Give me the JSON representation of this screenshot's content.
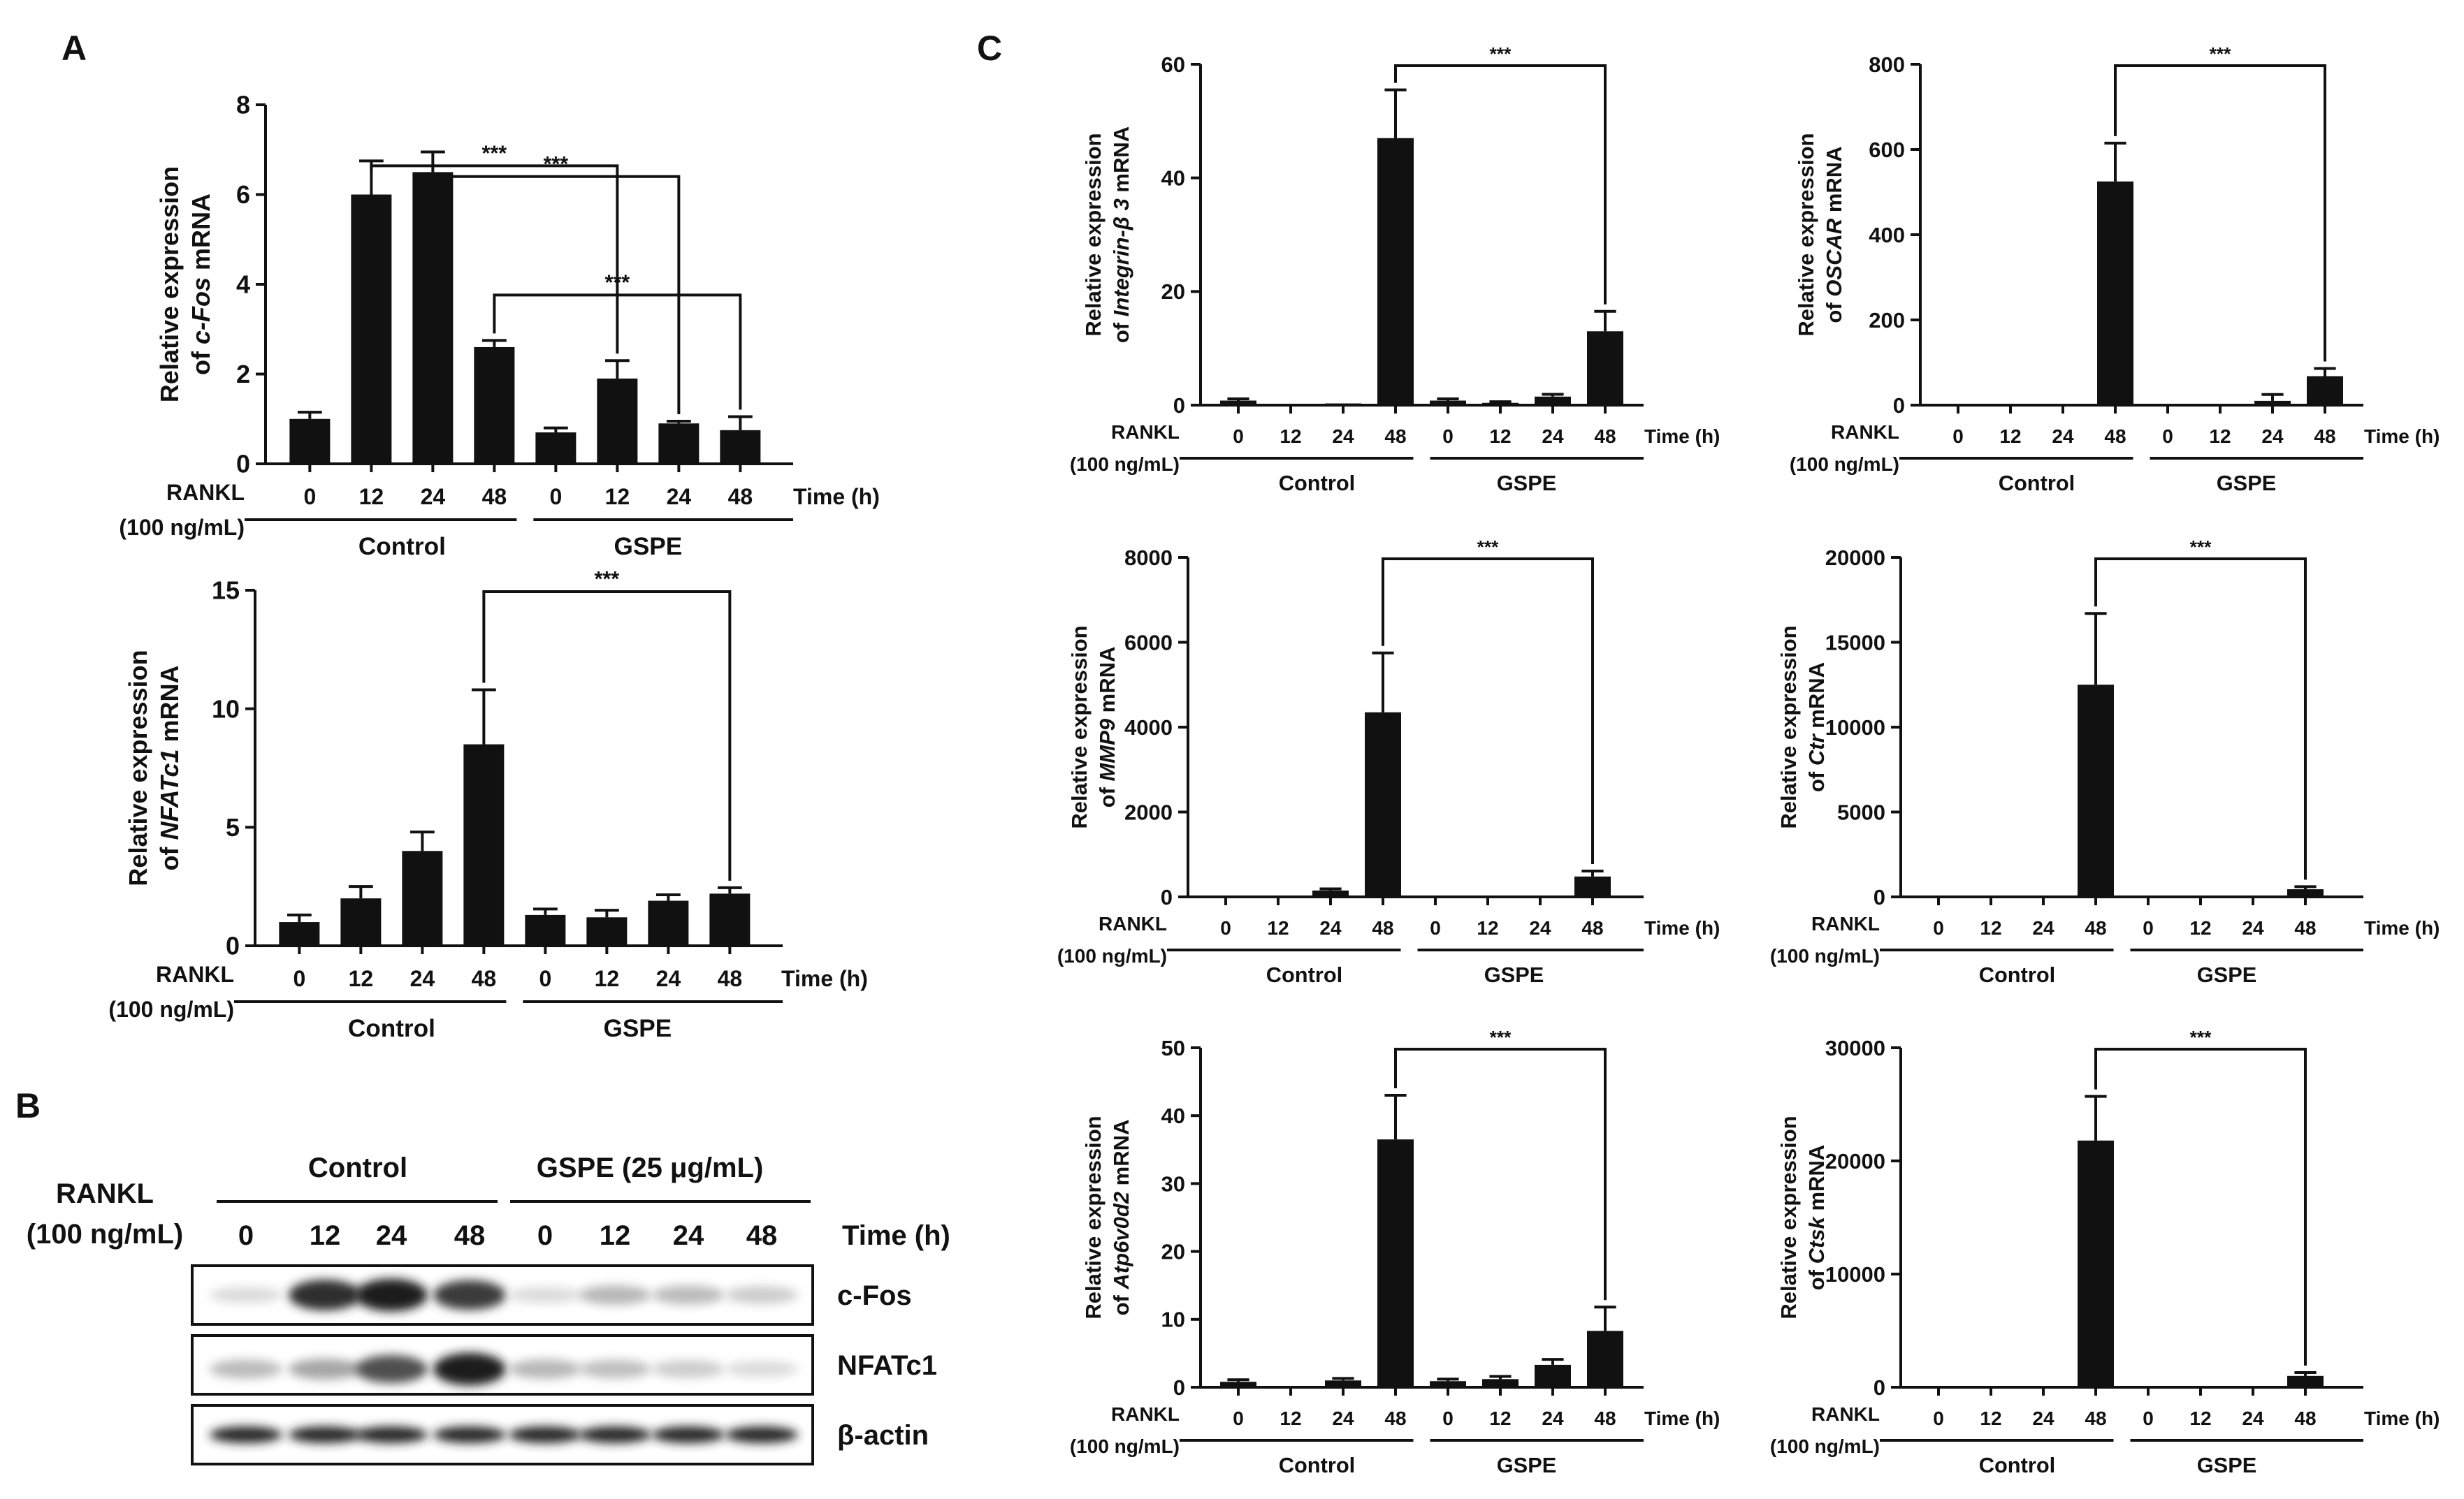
{
  "panels": {
    "A": "A",
    "B": "B",
    "C": "C"
  },
  "common": {
    "rankl_label": "RANKL",
    "rankl_dose": "(100 ng/mL)",
    "time_label": "Time (h)",
    "group_control": "Control",
    "group_gspe": "GSPE",
    "time_points": [
      "0",
      "12",
      "24",
      "48",
      "0",
      "12",
      "24",
      "48"
    ]
  },
  "chart_data": [
    {
      "id": "cfos",
      "panel": "A",
      "type": "bar",
      "ylabel_prefix": "Relative expression",
      "ylabel_gene": "c-Fos",
      "ylabel_suffix": " mRNA",
      "categories": [
        "Control 0",
        "Control 12",
        "Control 24",
        "Control 48",
        "GSPE 0",
        "GSPE 12",
        "GSPE 24",
        "GSPE 48"
      ],
      "values": [
        1.0,
        6.0,
        6.5,
        2.6,
        0.7,
        1.9,
        0.9,
        0.75
      ],
      "errors": [
        0.15,
        0.75,
        0.45,
        0.15,
        0.1,
        0.4,
        0.05,
        0.3
      ],
      "ylim": [
        0,
        8
      ],
      "yticks": [
        "0",
        "2",
        "4",
        "6",
        "8"
      ],
      "significance": [
        {
          "from": "Control 12",
          "to": "GSPE 12",
          "label": "***"
        },
        {
          "from": "Control 24",
          "to": "GSPE 24",
          "label": "***"
        },
        {
          "from": "Control 48",
          "to": "GSPE 48",
          "label": "***"
        }
      ]
    },
    {
      "id": "nfatc1",
      "panel": "A",
      "type": "bar",
      "ylabel_prefix": "Relative expression",
      "ylabel_gene": "NFATc1",
      "ylabel_suffix": " mRNA",
      "categories": [
        "Control 0",
        "Control 12",
        "Control 24",
        "Control 48",
        "GSPE 0",
        "GSPE 12",
        "GSPE 24",
        "GSPE 48"
      ],
      "values": [
        1.0,
        2.0,
        4.0,
        8.5,
        1.3,
        1.2,
        1.9,
        2.2
      ],
      "errors": [
        0.3,
        0.5,
        0.8,
        2.3,
        0.25,
        0.3,
        0.25,
        0.25
      ],
      "ylim": [
        0,
        15
      ],
      "yticks": [
        "0",
        "5",
        "10",
        "15"
      ],
      "significance": [
        {
          "from": "Control 48",
          "to": "GSPE 48",
          "label": "***"
        }
      ]
    },
    {
      "id": "itgb3",
      "panel": "C",
      "type": "bar",
      "ylabel_prefix": "Relative expression",
      "ylabel_gene": "Integrin-β 3",
      "ylabel_suffix": " mRNA",
      "categories": [
        "Control 0",
        "Control 12",
        "Control 24",
        "Control 48",
        "GSPE 0",
        "GSPE 12",
        "GSPE 24",
        "GSPE 48"
      ],
      "values": [
        0.8,
        0.2,
        0.3,
        47,
        0.8,
        0.4,
        1.5,
        13
      ],
      "errors": [
        0.3,
        0.1,
        0.1,
        8.5,
        0.3,
        0.2,
        0.4,
        3.5
      ],
      "ylim": [
        0,
        60
      ],
      "yticks": [
        "0",
        "20",
        "40",
        "60"
      ],
      "significance": [
        {
          "from": "Control 48",
          "to": "GSPE 48",
          "label": "***"
        }
      ]
    },
    {
      "id": "oscar",
      "panel": "C",
      "type": "bar",
      "ylabel_prefix": "Relative expression",
      "ylabel_gene": "OSCAR",
      "ylabel_suffix": " mRNA",
      "categories": [
        "Control 0",
        "Control 12",
        "Control 24",
        "Control 48",
        "GSPE 0",
        "GSPE 12",
        "GSPE 24",
        "GSPE 48"
      ],
      "values": [
        1,
        1,
        2,
        525,
        1,
        1,
        10,
        68
      ],
      "errors": [
        0.5,
        0.5,
        1,
        90,
        0.5,
        0.5,
        15,
        18
      ],
      "ylim": [
        0,
        800
      ],
      "yticks": [
        "0",
        "200",
        "400",
        "600",
        "800"
      ],
      "significance": [
        {
          "from": "Control 48",
          "to": "GSPE 48",
          "label": "***"
        }
      ]
    },
    {
      "id": "mmp9",
      "panel": "C",
      "type": "bar",
      "ylabel_prefix": "Relative expression",
      "ylabel_gene": "MMP9",
      "ylabel_suffix": " mRNA",
      "categories": [
        "Control 0",
        "Control 12",
        "Control 24",
        "Control 48",
        "GSPE 0",
        "GSPE 12",
        "GSPE 24",
        "GSPE 48"
      ],
      "values": [
        5,
        15,
        150,
        4350,
        5,
        5,
        20,
        480
      ],
      "errors": [
        2,
        5,
        40,
        1400,
        2,
        2,
        10,
        130
      ],
      "ylim": [
        0,
        8000
      ],
      "yticks": [
        "0",
        "2000",
        "4000",
        "6000",
        "8000"
      ],
      "significance": [
        {
          "from": "Control 48",
          "to": "GSPE 48",
          "label": "***"
        }
      ]
    },
    {
      "id": "ctr",
      "panel": "C",
      "type": "bar",
      "ylabel_prefix": "Relative expression",
      "ylabel_gene": "Ctr",
      "ylabel_suffix": " mRNA",
      "categories": [
        "Control 0",
        "Control 12",
        "Control 24",
        "Control 48",
        "GSPE 0",
        "GSPE 12",
        "GSPE 24",
        "GSPE 48"
      ],
      "values": [
        5,
        5,
        10,
        12500,
        5,
        5,
        10,
        450
      ],
      "errors": [
        2,
        2,
        5,
        4200,
        2,
        2,
        5,
        150
      ],
      "ylim": [
        0,
        20000
      ],
      "yticks": [
        "0",
        "5000",
        "10000",
        "15000",
        "20000"
      ],
      "significance": [
        {
          "from": "Control 48",
          "to": "GSPE 48",
          "label": "***"
        }
      ]
    },
    {
      "id": "atp6v0d2",
      "panel": "C",
      "type": "bar",
      "ylabel_prefix": "Relative expression",
      "ylabel_gene": "Atp6v0d2",
      "ylabel_suffix": " mRNA",
      "categories": [
        "Control 0",
        "Control 12",
        "Control 24",
        "Control 48",
        "GSPE 0",
        "GSPE 12",
        "GSPE 24",
        "GSPE 48"
      ],
      "values": [
        0.8,
        0.1,
        1.0,
        36.5,
        0.9,
        1.2,
        3.3,
        8.3
      ],
      "errors": [
        0.3,
        0.1,
        0.3,
        6.5,
        0.3,
        0.4,
        0.8,
        3.5
      ],
      "ylim": [
        0,
        50
      ],
      "yticks": [
        "0",
        "10",
        "20",
        "30",
        "40",
        "50"
      ],
      "significance": [
        {
          "from": "Control 48",
          "to": "GSPE 48",
          "label": "***"
        }
      ]
    },
    {
      "id": "ctsk",
      "panel": "C",
      "type": "bar",
      "ylabel_prefix": "Relative expression",
      "ylabel_gene": "Ctsk",
      "ylabel_suffix": " mRNA",
      "categories": [
        "Control 0",
        "Control 12",
        "Control 24",
        "Control 48",
        "GSPE 0",
        "GSPE 12",
        "GSPE 24",
        "GSPE 48"
      ],
      "values": [
        10,
        10,
        10,
        21800,
        10,
        10,
        50,
        1000
      ],
      "errors": [
        5,
        5,
        5,
        3900,
        5,
        5,
        20,
        300
      ],
      "ylim": [
        0,
        30000
      ],
      "yticks": [
        "0",
        "10000",
        "20000",
        "30000"
      ],
      "significance": [
        {
          "from": "Control 48",
          "to": "GSPE 48",
          "label": "***"
        }
      ]
    }
  ],
  "western_blot": {
    "rankl_label": "RANKL",
    "rankl_dose": "(100 ng/mL)",
    "group_control": "Control",
    "group_gspe": "GSPE (25 μg/mL)",
    "time_label": "Time (h)",
    "time_points": [
      "0",
      "12",
      "24",
      "48",
      "0",
      "12",
      "24",
      "48"
    ],
    "rows": [
      {
        "label": "c-Fos",
        "intensities": [
          0.05,
          0.85,
          0.95,
          0.8,
          0.05,
          0.22,
          0.2,
          0.12
        ]
      },
      {
        "label": "NFATc1",
        "intensities": [
          0.2,
          0.3,
          0.7,
          0.95,
          0.22,
          0.18,
          0.12,
          0.05
        ]
      },
      {
        "label": "β-actin",
        "intensities": [
          0.9,
          0.9,
          0.9,
          0.9,
          0.9,
          0.9,
          0.9,
          0.9
        ]
      }
    ]
  }
}
